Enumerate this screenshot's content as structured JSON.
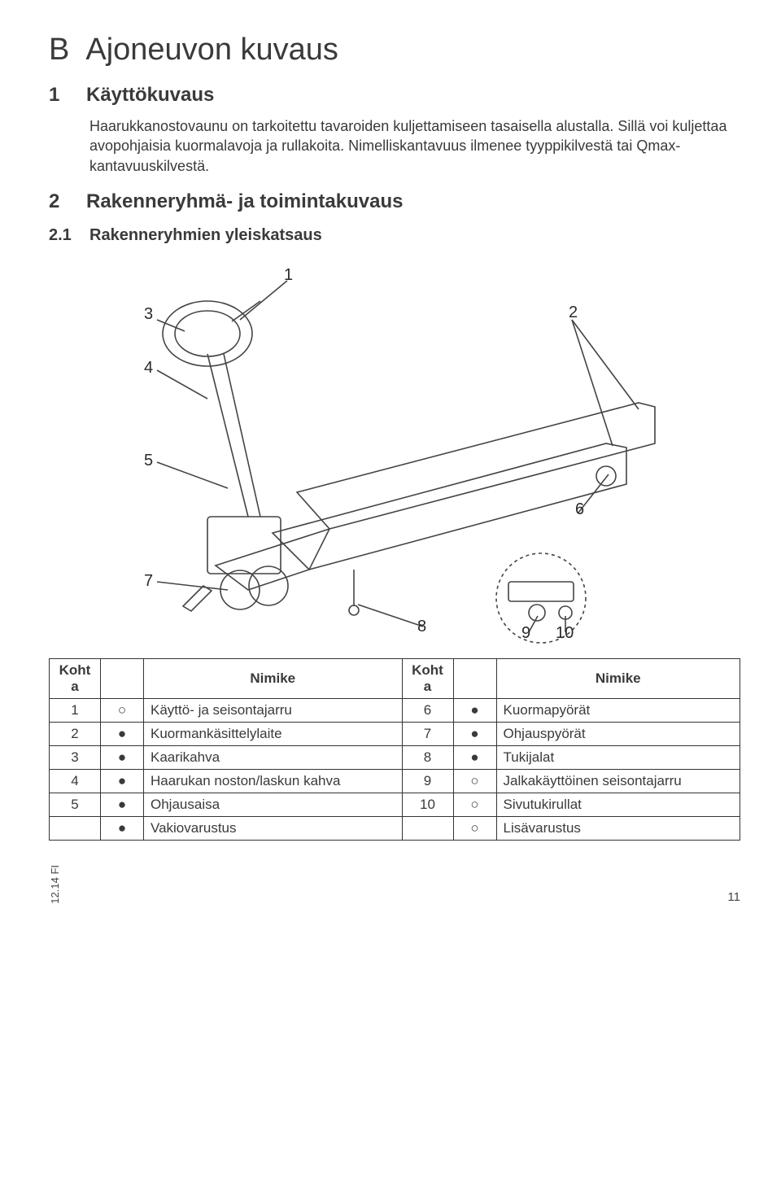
{
  "colors": {
    "text": "#3a3a3a",
    "stroke": "#333333",
    "background": "#ffffff",
    "symbol_filled": "#000000",
    "symbol_open": "#ffffff"
  },
  "title": {
    "letter": "B",
    "text": "Ajoneuvon kuvaus"
  },
  "section1": {
    "num": "1",
    "heading": "Käyttökuvaus",
    "para": "Haarukkanostovaunu on tarkoitettu tavaroiden kuljettamiseen tasaisella alustalla. Sillä voi kuljettaa avopohjaisia kuormalavoja ja rullakoita. Nimelliskantavuus ilmenee tyyppikilvestä tai Qmax-kantavuuskilvestä."
  },
  "section2": {
    "num": "2",
    "heading": "Rakenneryhmä- ja toimintakuvaus"
  },
  "section21": {
    "num": "2.1",
    "heading": "Rakenneryhmien yleiskatsaus"
  },
  "diagram": {
    "callouts": [
      "1",
      "2",
      "3",
      "4",
      "5",
      "6",
      "7",
      "8",
      "9",
      "10"
    ]
  },
  "table": {
    "headers": {
      "kohta": "Koht a",
      "nimike": "Nimike"
    },
    "symbols": {
      "filled": "●",
      "open": "○"
    },
    "rows_left": [
      {
        "num": "1",
        "sym": "open",
        "name": "Käyttö- ja seisontajarru"
      },
      {
        "num": "2",
        "sym": "filled",
        "name": "Kuormankäsittelylaite"
      },
      {
        "num": "3",
        "sym": "filled",
        "name": "Kaarikahva"
      },
      {
        "num": "4",
        "sym": "filled",
        "name": "Haarukan noston/laskun kahva"
      },
      {
        "num": "5",
        "sym": "filled",
        "name": "Ohjausaisa"
      },
      {
        "num": "",
        "sym": "filled",
        "name": "Vakiovarustus"
      }
    ],
    "rows_right": [
      {
        "num": "6",
        "sym": "filled",
        "name": "Kuormapyörät"
      },
      {
        "num": "7",
        "sym": "filled",
        "name": "Ohjauspyörät"
      },
      {
        "num": "8",
        "sym": "filled",
        "name": "Tukijalat"
      },
      {
        "num": "9",
        "sym": "open",
        "name": "Jalkakäyttöinen seisontajarru"
      },
      {
        "num": "10",
        "sym": "open",
        "name": "Sivutukirullat"
      },
      {
        "num": "",
        "sym": "open",
        "name": "Lisävarustus"
      }
    ]
  },
  "footer": {
    "side": "12.14 FI",
    "page": "11"
  }
}
